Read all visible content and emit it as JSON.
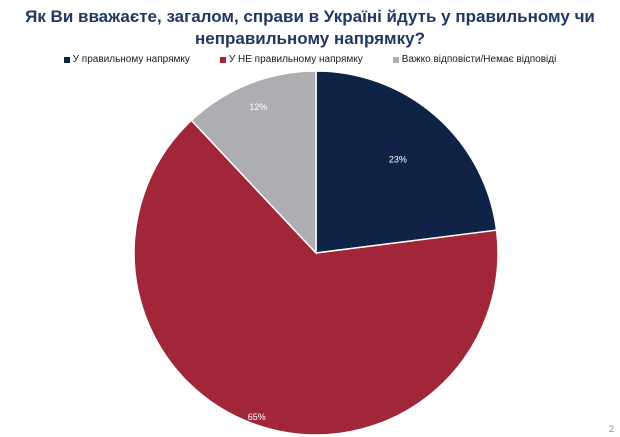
{
  "title": {
    "line1": "Як Ви вважаєте, загалом, справи в Україні йдуть у правильному чи",
    "line2": "неправильному напрямку?"
  },
  "page_number": "2",
  "chart_data": {
    "type": "pie",
    "legend_position": "top",
    "slices": [
      {
        "label": "У правильному напрямку",
        "value": 23,
        "value_label": "23%",
        "color": "#0f2347",
        "label_color": "#ffffff"
      },
      {
        "label": "У НЕ правильному напрямку",
        "value": 65,
        "value_label": "65%",
        "color": "#a12637",
        "label_color": "#ffffff"
      },
      {
        "label": "Важко відповісти/Немає відповіді",
        "value": 12,
        "value_label": "12%",
        "color": "#aeaeb2",
        "label_color": "#ffffff"
      }
    ]
  }
}
